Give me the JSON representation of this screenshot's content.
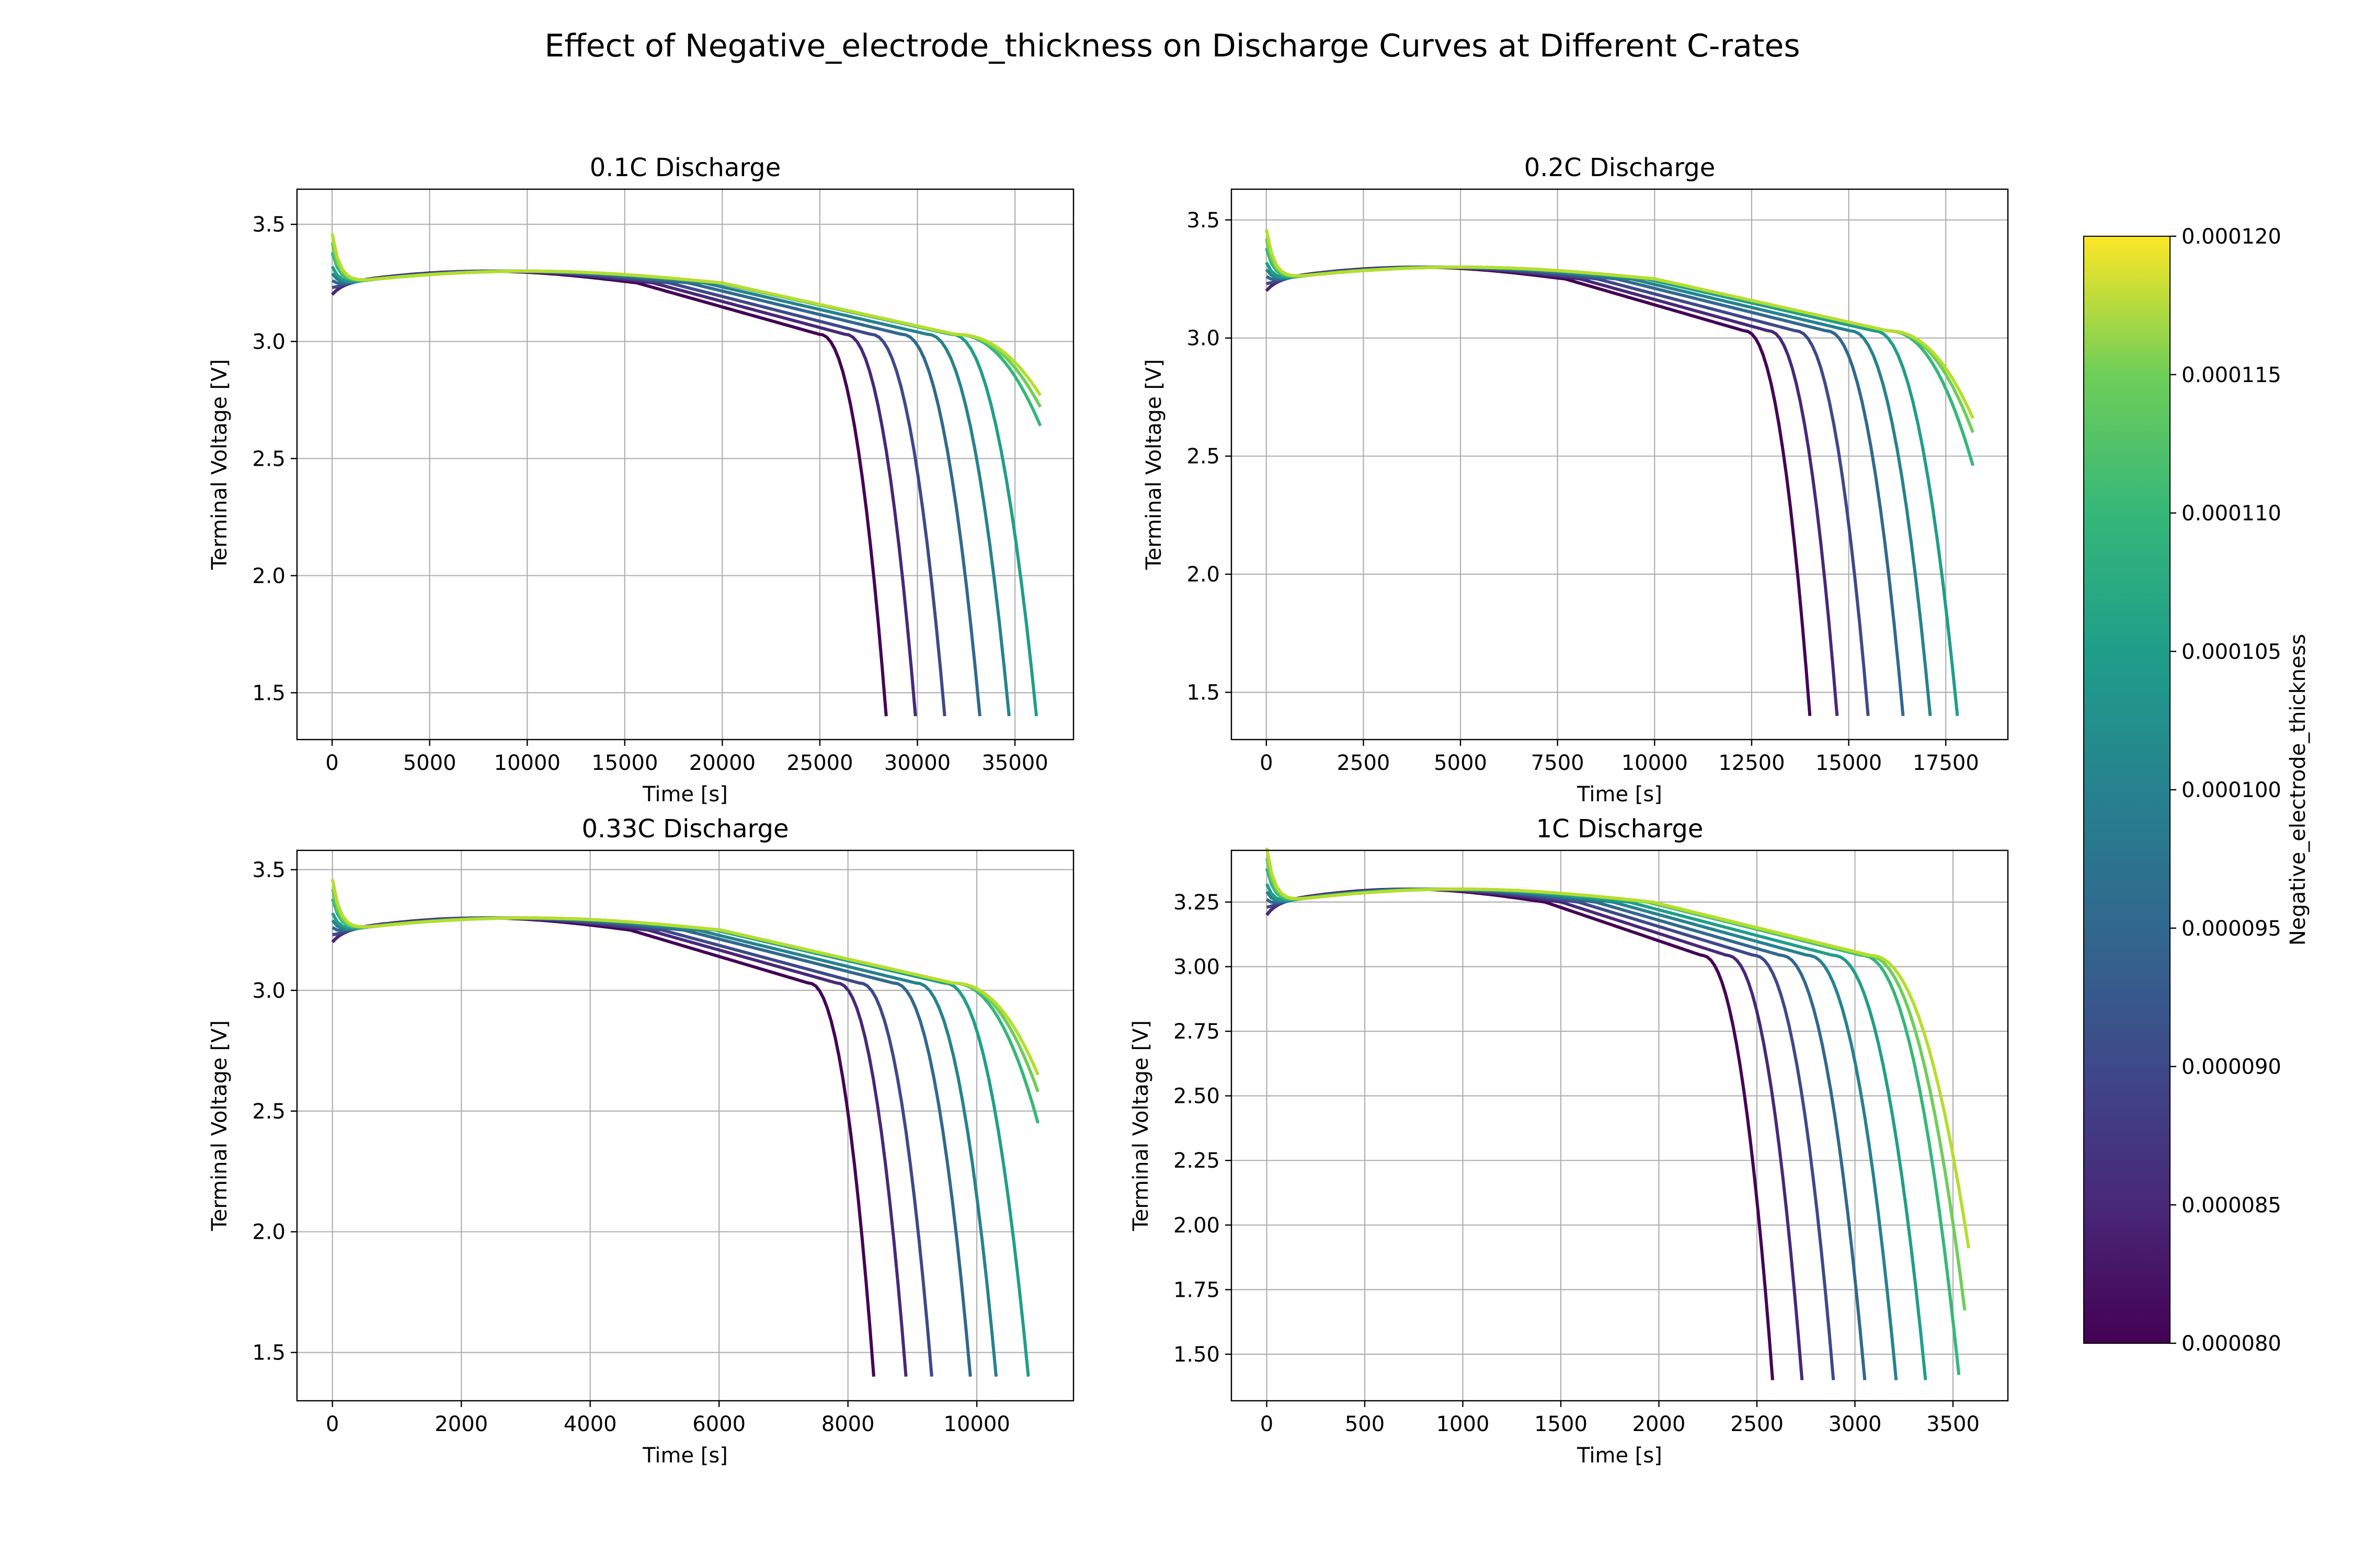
{
  "suptitle": "Effect of Negative_electrode_thickness on Discharge Curves at Different C-rates",
  "colorbar": {
    "label": "Negative_electrode_thickness",
    "colormap": "viridis",
    "range": [
      8e-05,
      0.00012
    ],
    "ticks": [
      "0.000080",
      "0.000085",
      "0.000090",
      "0.000095",
      "0.000100",
      "0.000105",
      "0.000110",
      "0.000115",
      "0.000120"
    ]
  },
  "series_colors": [
    "#440154",
    "#482878",
    "#3e4989",
    "#31688e",
    "#26828e",
    "#1f9e89",
    "#35b779",
    "#6ece58",
    "#b5de2b"
  ],
  "chart_data": [
    {
      "type": "line",
      "title": "0.1C Discharge",
      "xlabel": "Time [s]",
      "ylabel": "Terminal Voltage [V]",
      "xlim": [
        -1800,
        38000
      ],
      "ylim": [
        1.3,
        3.65
      ],
      "xticks": [
        0,
        5000,
        10000,
        15000,
        20000,
        25000,
        30000,
        35000
      ],
      "yticks": [
        1.5,
        2.0,
        2.5,
        3.0,
        3.5
      ],
      "ytick_labels": [
        "1.5",
        "2.0",
        "2.5",
        "3.0",
        "3.5"
      ],
      "grid": true,
      "end_times": [
        28400,
        29900,
        31400,
        33200,
        34700,
        36100,
        36300,
        36300,
        36300
      ],
      "end_voltages": [
        1.4,
        1.4,
        1.4,
        1.4,
        1.4,
        1.4,
        2.64,
        2.72,
        2.77
      ],
      "knee_fraction": 0.88
    },
    {
      "type": "line",
      "title": "0.2C Discharge",
      "xlabel": "Time [s]",
      "ylabel": "Terminal Voltage [V]",
      "xlim": [
        -900,
        19100
      ],
      "ylim": [
        1.3,
        3.63
      ],
      "xticks": [
        0,
        2500,
        5000,
        7500,
        10000,
        12500,
        15000,
        17500
      ],
      "yticks": [
        1.5,
        2.0,
        2.5,
        3.0,
        3.5
      ],
      "ytick_labels": [
        "1.5",
        "2.0",
        "2.5",
        "3.0",
        "3.5"
      ],
      "grid": true,
      "end_times": [
        14000,
        14700,
        15500,
        16400,
        17100,
        17800,
        18200,
        18200,
        18200
      ],
      "end_voltages": [
        1.4,
        1.4,
        1.4,
        1.4,
        1.4,
        1.4,
        2.46,
        2.6,
        2.66
      ],
      "knee_fraction": 0.88
    },
    {
      "type": "line",
      "title": "0.33C Discharge",
      "xlabel": "Time [s]",
      "ylabel": "Terminal Voltage [V]",
      "xlim": [
        -550,
        11500
      ],
      "ylim": [
        1.3,
        3.58
      ],
      "xticks": [
        0,
        2000,
        4000,
        6000,
        8000,
        10000
      ],
      "yticks": [
        1.5,
        2.0,
        2.5,
        3.0,
        3.5
      ],
      "ytick_labels": [
        "1.5",
        "2.0",
        "2.5",
        "3.0",
        "3.5"
      ],
      "grid": true,
      "end_times": [
        8400,
        8900,
        9300,
        9900,
        10300,
        10800,
        10950,
        10950,
        10950
      ],
      "end_voltages": [
        1.4,
        1.4,
        1.4,
        1.4,
        1.4,
        1.4,
        2.45,
        2.58,
        2.65
      ],
      "knee_fraction": 0.88
    },
    {
      "type": "line",
      "title": "1C Discharge",
      "xlabel": "Time [s]",
      "ylabel": "Terminal Voltage [V]",
      "xlim": [
        -180,
        3780
      ],
      "ylim": [
        1.32,
        3.45
      ],
      "xticks": [
        0,
        500,
        1000,
        1500,
        2000,
        2500,
        3000,
        3500
      ],
      "yticks": [
        1.5,
        1.75,
        2.0,
        2.25,
        2.5,
        2.75,
        3.0,
        3.25
      ],
      "ytick_labels": [
        "1.50",
        "1.75",
        "2.00",
        "2.25",
        "2.50",
        "2.75",
        "3.00",
        "3.25"
      ],
      "grid": true,
      "end_times": [
        2580,
        2730,
        2890,
        3050,
        3210,
        3360,
        3530,
        3560,
        3580
      ],
      "end_voltages": [
        1.4,
        1.4,
        1.4,
        1.4,
        1.4,
        1.4,
        1.42,
        1.67,
        1.91
      ],
      "knee_fraction": 0.86
    }
  ]
}
